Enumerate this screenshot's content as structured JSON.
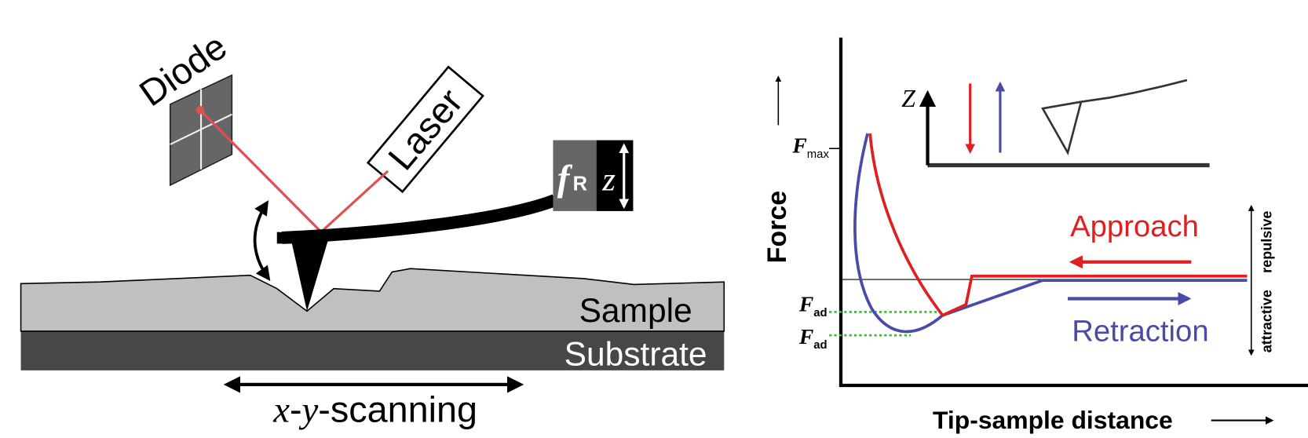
{
  "afm_setup": {
    "diode": "Diode",
    "laser": "Laser",
    "frequency": {
      "symbol": "f",
      "subscript": "R"
    },
    "z_drive": "z",
    "sample": "Sample",
    "substrate": "Substrate",
    "scanning": {
      "x": "x",
      "dash": "-",
      "y": "y",
      "rest": "-scanning"
    }
  },
  "force_curve": {
    "y_axis": "Force",
    "x_axis": "Tip-sample distance",
    "f_max": {
      "symbol": "F",
      "subscript": "max"
    },
    "f_ad_approach": {
      "symbol": "F",
      "subscript": "ad"
    },
    "f_ad_retraction": {
      "symbol": "F",
      "subscript": "ad"
    },
    "inset_axis": "Z",
    "approach": "Approach",
    "retraction": "Retraction",
    "attractive": "attractive",
    "repulsive": "repulsive"
  }
}
